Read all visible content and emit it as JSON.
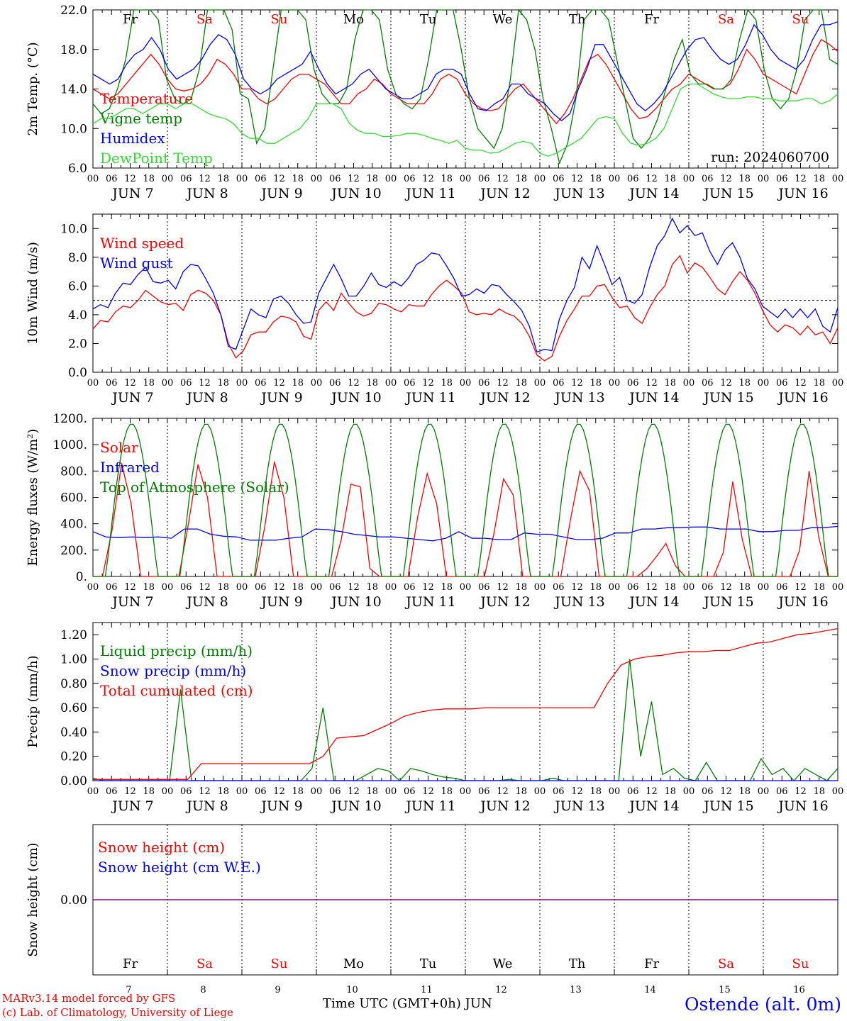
{
  "colors": {
    "red": "#ff0000",
    "green": "#008000",
    "blue": "#0000ff",
    "lightgreen": "#33dd33",
    "purple": "#800080",
    "black": "#000000"
  },
  "days": [
    "Fr",
    "Sa",
    "Su",
    "Mo",
    "Tu",
    "We",
    "Th",
    "Fr",
    "Sa",
    "Su"
  ],
  "day_colors": [
    "black",
    "red",
    "red",
    "black",
    "black",
    "black",
    "black",
    "black",
    "red",
    "red"
  ],
  "hour_ticks": [
    "00",
    "06",
    "12",
    "18"
  ],
  "date_labels": [
    "JUN  7",
    "JUN  8",
    "JUN  9",
    "JUN 10",
    "JUN 11",
    "JUN 12",
    "JUN 13",
    "JUN 14",
    "JUN 15",
    "JUN 16"
  ],
  "bottom_day_numbers": [
    "7",
    "8",
    "9",
    "10",
    "11",
    "12",
    "13",
    "14",
    "15",
    "16"
  ],
  "xlabel": "Time UTC (GMT+0h)",
  "xlabel_month": "JUN",
  "footer": {
    "line1": "MARv3.14 model forced by GFS",
    "line2": "(c) Lab. of Climatology, University of Liege",
    "station": "Ostende (alt. 0m)"
  },
  "chart_data": [
    {
      "type": "line",
      "ylabel": "2m Temp. (°C)",
      "ylim": [
        6.0,
        22.0
      ],
      "yticks": [
        "6.0",
        "10.0",
        "14.0",
        "18.0",
        "22.0"
      ],
      "annotation": "run: 2024060700",
      "x_hours_step": 6,
      "series": [
        {
          "name": "Temperature",
          "color": "red",
          "values": [
            14,
            13.5,
            13,
            13.5,
            14.5,
            15.5,
            16.5,
            17.5,
            16.5,
            15,
            14,
            13.8,
            14,
            14.5,
            15.5,
            17,
            16.5,
            15.5,
            14,
            14,
            13,
            12.5,
            13,
            14,
            15,
            15.5,
            15.5,
            15,
            14.5,
            13.5,
            12.5,
            12.5,
            13.5,
            14,
            15,
            14.5,
            13.5,
            13,
            12.5,
            12.5,
            12.5,
            13.5,
            15,
            15.5,
            15,
            13.5,
            12.5,
            12,
            11.8,
            12,
            13,
            14,
            14.5,
            13.5,
            12.5,
            11.5,
            10.5,
            11.5,
            13,
            15,
            17,
            17.5,
            16.5,
            15,
            13.5,
            12,
            11,
            11.2,
            12,
            13,
            14,
            14.5,
            15.5,
            15,
            14.5,
            14,
            14,
            14.5,
            16,
            18,
            17,
            15.5,
            15,
            14.5,
            14,
            13.5,
            15.5,
            17.5,
            19,
            18.5,
            17.8
          ]
        },
        {
          "name": "Vigne temp",
          "color": "green",
          "values": [
            12.5,
            11.5,
            12,
            14,
            17,
            22,
            22,
            22,
            21,
            15,
            13,
            12.5,
            13,
            16,
            22,
            22,
            22,
            20,
            13.5,
            13,
            8.5,
            10,
            16,
            22,
            22,
            22,
            21,
            16,
            13.5,
            12.5,
            12.5,
            14,
            19,
            22,
            22,
            21,
            16,
            13.5,
            12.5,
            12,
            13,
            17,
            22,
            22,
            22,
            18,
            13,
            10,
            9,
            8,
            10,
            15,
            22,
            21,
            18,
            13,
            10,
            6.5,
            8.5,
            13,
            21,
            22,
            22,
            21,
            17,
            13,
            9,
            8,
            9,
            11,
            14,
            17,
            19,
            15.5,
            14.5,
            14.5,
            14,
            14,
            15,
            19,
            22,
            21,
            16,
            13,
            12,
            13,
            16,
            21,
            22,
            22,
            17,
            16.5
          ]
        },
        {
          "name": "Humidex",
          "color": "blue",
          "values": [
            15.5,
            15,
            14.5,
            15,
            16.5,
            17.5,
            18,
            19.2,
            18,
            16,
            15,
            15.5,
            16,
            17,
            18.5,
            19.5,
            19,
            17.5,
            15,
            14,
            13.5,
            14,
            15,
            15.5,
            16,
            16.5,
            17.8,
            16,
            14.5,
            13.5,
            14,
            14.5,
            15.5,
            16,
            15,
            14,
            13.5,
            13,
            13,
            13.5,
            14,
            15.5,
            16,
            16,
            15.5,
            13.5,
            12,
            11.8,
            12.5,
            13,
            14.5,
            14.5,
            13.5,
            13,
            12.5,
            11.5,
            10.8,
            11.5,
            14,
            16,
            18.5,
            18.5,
            17,
            15.5,
            14,
            12.5,
            11.8,
            12.5,
            13.5,
            15,
            16.5,
            18,
            19,
            19.2,
            18,
            17,
            16.5,
            17,
            18.5,
            20.5,
            19.5,
            18,
            17,
            16.5,
            16,
            17,
            19,
            20.5,
            20.5,
            20.8
          ]
        },
        {
          "name": "DewPoint Temp",
          "color": "lightgreen",
          "values": [
            10.5,
            11,
            11,
            11.5,
            12,
            12,
            11.5,
            12,
            12.5,
            12.5,
            12,
            12.5,
            12.5,
            12,
            11.5,
            11.2,
            11,
            10.5,
            9.5,
            9,
            9,
            8.5,
            8.5,
            9,
            9.5,
            10,
            11,
            12.5,
            12.5,
            12.5,
            12,
            10.5,
            9.8,
            9.5,
            9.5,
            9.2,
            9.2,
            9.3,
            9.5,
            9.5,
            9.3,
            9,
            8.8,
            8.5,
            8.8,
            8,
            7.8,
            7.8,
            7.5,
            7.6,
            8,
            8.5,
            8.7,
            8.5,
            7.5,
            7.2,
            7.5,
            8,
            8.5,
            9,
            10,
            11,
            11.2,
            11,
            9.5,
            8.5,
            8.3,
            8.5,
            9,
            10,
            12,
            14,
            14.5,
            14.5,
            14,
            13.5,
            13.2,
            13,
            13,
            13.2,
            13.2,
            13,
            13,
            12.8,
            12.8,
            12.8,
            13,
            13,
            12.5,
            12.8,
            13.5
          ]
        }
      ]
    },
    {
      "type": "line",
      "ylabel": "10m Wind (m/s)",
      "ylim": [
        0.0,
        11.0
      ],
      "yticks": [
        "0.0",
        "2.0",
        "4.0",
        "6.0",
        "8.0",
        "10.0"
      ],
      "reference_line": 5.0,
      "x_hours_step": 6,
      "series": [
        {
          "name": "Wind speed",
          "color": "red",
          "values": [
            3,
            3.6,
            3.5,
            4.2,
            4.6,
            4.5,
            5,
            5.7,
            5.3,
            4.9,
            4.7,
            4.8,
            4.3,
            5.4,
            5.7,
            5.5,
            5,
            4,
            2,
            1,
            1.5,
            2.6,
            2.8,
            2.8,
            3.5,
            3.9,
            3.8,
            3.5,
            2.5,
            2.3,
            4.3,
            4.9,
            4.3,
            5.5,
            4.8,
            4.2,
            3.9,
            4.1,
            4.8,
            4.7,
            4.4,
            4.2,
            4.7,
            4.6,
            4.6,
            5.4,
            6,
            6.4,
            6,
            5.5,
            4.2,
            4,
            4.1,
            4,
            4.4,
            4.1,
            3.9,
            3.4,
            2.5,
            1.2,
            0.8,
            1.1,
            2.5,
            3.6,
            4.4,
            5.3,
            5.3,
            6,
            6.1,
            5.2,
            4.5,
            4.6,
            3.8,
            3.4,
            4.5,
            5.4,
            6,
            7.5,
            8.1,
            6.9,
            7.6,
            7.3,
            6.6,
            5.8,
            5.4,
            6.3,
            7,
            6.4,
            5.5,
            4.3,
            3.3,
            2.8,
            3.3,
            3.1,
            2.6,
            3.2,
            2.6,
            2.8,
            2,
            3.1
          ]
        },
        {
          "name": "Wind gust",
          "color": "blue",
          "values": [
            4.4,
            4.7,
            4.5,
            5.5,
            6.2,
            6.1,
            6.8,
            7.3,
            6.3,
            6.2,
            6.4,
            5.8,
            7,
            7.5,
            7.4,
            6.5,
            5.5,
            4,
            1.8,
            1.6,
            3,
            4.4,
            4,
            3.8,
            5.1,
            5.3,
            4.8,
            4,
            3.4,
            3.5,
            5.5,
            6.5,
            7.5,
            6.5,
            5.3,
            5.3,
            6,
            6.9,
            6.1,
            5.9,
            6.3,
            6,
            6.6,
            7.5,
            7.8,
            8.3,
            8.2,
            7.4,
            6.5,
            5.3,
            5.4,
            5.8,
            5.5,
            6.1,
            6,
            5.4,
            4.9,
            4.3,
            3.2,
            1.4,
            1.6,
            1.5,
            3.7,
            5,
            5.9,
            8,
            7.2,
            8.8,
            7.5,
            6.1,
            6.6,
            5,
            4.8,
            5.4,
            7.3,
            8.8,
            9.5,
            10.7,
            9.7,
            10.2,
            9.5,
            9.7,
            8.4,
            7.5,
            8.5,
            9,
            8,
            6.5,
            5.8,
            4.6,
            4.2,
            3.8,
            4.4,
            3.8,
            4.4,
            3.8,
            4.4,
            3.2,
            2.8,
            4.5
          ]
        }
      ]
    },
    {
      "type": "line",
      "ylabel": "Energy fluxes (W/m²)",
      "ylim": [
        0,
        1200
      ],
      "yticks": [
        "0.",
        "200.",
        "400.",
        "600.",
        "800.",
        "1000.",
        "1200."
      ],
      "x_hours_step": 6,
      "series": [
        {
          "name": "Solar",
          "color": "red",
          "values": [
            0,
            0,
            350,
            860,
            550,
            0,
            0,
            0,
            0,
            0,
            400,
            850,
            600,
            0,
            0,
            0,
            0,
            0,
            380,
            870,
            600,
            0,
            0,
            0,
            0,
            0,
            280,
            700,
            680,
            60,
            0,
            0,
            0,
            0,
            450,
            780,
            550,
            0,
            0,
            0,
            0,
            0,
            330,
            740,
            620,
            0,
            0,
            0,
            0,
            0,
            430,
            800,
            650,
            0,
            0,
            0,
            0,
            0,
            60,
            150,
            250,
            80,
            0,
            0,
            0,
            0,
            180,
            720,
            280,
            0,
            0,
            0,
            0,
            0,
            200,
            800,
            300,
            0,
            0
          ]
        },
        {
          "name": "Infrared",
          "color": "blue",
          "values": [
            340,
            300,
            295,
            300,
            295,
            300,
            290,
            360,
            360,
            320,
            305,
            300,
            275,
            275,
            275,
            290,
            300,
            360,
            355,
            340,
            320,
            310,
            300,
            300,
            290,
            280,
            270,
            290,
            340,
            290,
            290,
            280,
            280,
            330,
            320,
            320,
            300,
            280,
            280,
            290,
            330,
            330,
            360,
            360,
            370,
            370,
            375,
            375,
            360,
            360,
            360,
            340,
            340,
            350,
            350,
            370,
            370,
            380
          ]
        },
        {
          "name": "Top of Atmosphere (Solar)",
          "color": "green",
          "values": [
            0,
            300,
            900,
            1160,
            900,
            300,
            0,
            0
          ]
        }
      ]
    },
    {
      "type": "line",
      "ylabel": "Precip (mm/h)",
      "ylim": [
        0.0,
        1.3
      ],
      "yticks": [
        "0.00",
        "0.20",
        "0.40",
        "0.60",
        "0.80",
        "1.00",
        "1.20"
      ],
      "x_hours_step": 6,
      "series": [
        {
          "name": "Liquid precip (mm/h)",
          "color": "green",
          "values": [
            0.02,
            0,
            0,
            0,
            0,
            0,
            0,
            0,
            0.75,
            0,
            0,
            0,
            0,
            0,
            0,
            0,
            0,
            0,
            0,
            0,
            0.1,
            0.6,
            0,
            0,
            0,
            0.05,
            0.1,
            0.08,
            0,
            0.1,
            0.08,
            0.05,
            0.03,
            0.02,
            0,
            0,
            0,
            0,
            0.01,
            0,
            0,
            0,
            0.02,
            0,
            0,
            0,
            0,
            0,
            0,
            1.0,
            0.2,
            0.65,
            0.05,
            0.1,
            0.02,
            0,
            0.15,
            0,
            0,
            0,
            0,
            0.18,
            0.05,
            0.1,
            0,
            0.1,
            0.05,
            0,
            0.1
          ]
        },
        {
          "name": "Snow precip (mm/h)",
          "color": "blue",
          "values": [
            0,
            0,
            0,
            0,
            0,
            0,
            0,
            0,
            0,
            0
          ]
        },
        {
          "name": "Total cumulated (cm)",
          "color": "red",
          "values": [
            0.01,
            0.01,
            0.01,
            0.01,
            0.01,
            0.01,
            0.01,
            0.01,
            0.14,
            0.14,
            0.14,
            0.14,
            0.14,
            0.14,
            0.14,
            0.14,
            0.14,
            0.2,
            0.35,
            0.36,
            0.37,
            0.42,
            0.47,
            0.53,
            0.56,
            0.58,
            0.59,
            0.59,
            0.59,
            0.6,
            0.6,
            0.6,
            0.6,
            0.6,
            0.6,
            0.6,
            0.6,
            0.6,
            0.8,
            0.95,
            1.0,
            1.02,
            1.03,
            1.05,
            1.06,
            1.06,
            1.07,
            1.07,
            1.1,
            1.13,
            1.14,
            1.17,
            1.2,
            1.21,
            1.23,
            1.25
          ]
        }
      ]
    },
    {
      "type": "line",
      "ylabel": "Snow height (cm)",
      "ylim": [
        -1,
        1
      ],
      "yticks": [
        "0.00"
      ],
      "x_hours_step": 6,
      "series": [
        {
          "name": "Snow height (cm)",
          "color": "red",
          "values": [
            0,
            0,
            0,
            0,
            0,
            0,
            0,
            0,
            0,
            0
          ]
        },
        {
          "name": "Snow height (cm W.E.)",
          "color": "blue",
          "values": [
            0,
            0,
            0,
            0,
            0,
            0,
            0,
            0,
            0,
            0
          ]
        }
      ]
    }
  ]
}
